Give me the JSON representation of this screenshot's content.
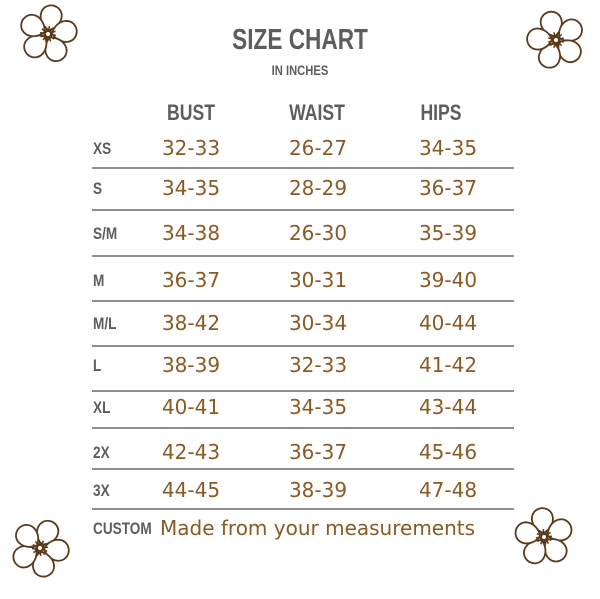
{
  "title": "SIZE CHART",
  "subtitle": "IN INCHES",
  "columns": [
    "BUST",
    "WAIST",
    "HIPS"
  ],
  "rows": [
    {
      "size": "XS",
      "bust": "32-33",
      "waist": "26-27",
      "hips": "34-35"
    },
    {
      "size": "S",
      "bust": "34-35",
      "waist": "28-29",
      "hips": "36-37"
    },
    {
      "size": "S/M",
      "bust": "34-38",
      "waist": "26-30",
      "hips": "35-39"
    },
    {
      "size": "M",
      "bust": "36-37",
      "waist": "30-31",
      "hips": "39-40"
    },
    {
      "size": "M/L",
      "bust": "38-42",
      "waist": "30-34",
      "hips": "40-44"
    },
    {
      "size": "L",
      "bust": "38-39",
      "waist": "32-33",
      "hips": "41-42"
    },
    {
      "size": "XL",
      "bust": "40-41",
      "waist": "34-35",
      "hips": "43-44"
    },
    {
      "size": "2X",
      "bust": "42-43",
      "waist": "36-37",
      "hips": "45-46"
    },
    {
      "size": "3X",
      "bust": "44-45",
      "waist": "38-39",
      "hips": "47-48"
    }
  ],
  "custom": {
    "size": "CUSTOM",
    "note": "Made from your measurements"
  },
  "colors": {
    "heading": "#5d5d5d",
    "value": "#8a5a24",
    "rule": "#8e8e8e",
    "flower": "#5a3a1a"
  },
  "decorations": {
    "icon": "flower-icon",
    "count": 4
  }
}
